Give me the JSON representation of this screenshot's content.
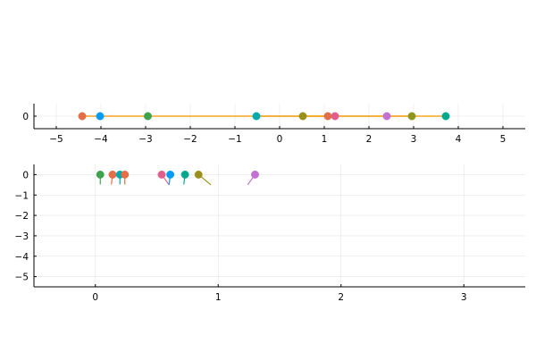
{
  "chart_data": [
    {
      "type": "scatter",
      "panel": "top",
      "title": "",
      "xlabel": "",
      "ylabel": "",
      "xlim": [
        -5.5,
        5.5
      ],
      "ylim": [
        -0.5,
        0.5
      ],
      "xticks": [
        -5,
        -4,
        -3,
        -2,
        -1,
        0,
        1,
        2,
        3,
        4,
        5
      ],
      "xtick_labels": [
        "−5",
        "−4",
        "−3",
        "−2",
        "−1",
        "0",
        "1",
        "2",
        "3",
        "4",
        "5"
      ],
      "yticks": [
        0
      ],
      "ytick_labels": [
        "0"
      ],
      "grid": true,
      "legend": "none",
      "line_color": "#f5a623",
      "lines": [
        {
          "x": [
            -4.4,
            -4.0
          ],
          "y": [
            0,
            0
          ]
        },
        {
          "x": [
            -4.0,
            3.7
          ],
          "y": [
            0,
            0
          ]
        },
        {
          "x": [
            -0.5,
            1.25
          ],
          "y": [
            0,
            0
          ]
        },
        {
          "x": [
            0.5,
            2.95
          ],
          "y": [
            0,
            0
          ]
        }
      ],
      "points": [
        {
          "x": -4.42,
          "y": 0,
          "color": "#e26f46"
        },
        {
          "x": -4.02,
          "y": 0,
          "color": "#009af9"
        },
        {
          "x": -2.95,
          "y": 0,
          "color": "#3da44d"
        },
        {
          "x": -0.52,
          "y": 0,
          "color": "#00a9ad"
        },
        {
          "x": 0.52,
          "y": 0,
          "color": "#9b8f1c"
        },
        {
          "x": 1.08,
          "y": 0,
          "color": "#e16f4a"
        },
        {
          "x": 1.24,
          "y": 0,
          "color": "#e05f8c"
        },
        {
          "x": 2.4,
          "y": 0,
          "color": "#c271d2"
        },
        {
          "x": 2.96,
          "y": 0,
          "color": "#8e971d"
        },
        {
          "x": 3.72,
          "y": 0,
          "color": "#00a98d"
        }
      ]
    },
    {
      "type": "scatter",
      "panel": "bottom",
      "title": "",
      "xlabel": "",
      "ylabel": "",
      "xlim": [
        -0.5,
        3.5
      ],
      "ylim": [
        -5.5,
        0.5
      ],
      "xticks": [
        0,
        1,
        2,
        3
      ],
      "xtick_labels": [
        "0",
        "1",
        "2",
        "3"
      ],
      "yticks": [
        0,
        -1,
        -2,
        -3,
        -4,
        -5
      ],
      "ytick_labels": [
        "0",
        "−1",
        "−2",
        "−3",
        "−4",
        "−5"
      ],
      "grid": true,
      "legend": "none",
      "points": [
        {
          "x": 0.04,
          "y": 0,
          "color": "#3da44d",
          "stem_to": [
            0.04,
            -0.48
          ],
          "stem_color": "#3da44d"
        },
        {
          "x": 0.14,
          "y": 0,
          "color": "#e26f46",
          "stem_to": [
            0.13,
            -0.48
          ],
          "stem_color": "#e26f46"
        },
        {
          "x": 0.2,
          "y": 0,
          "color": "#00a9ad",
          "stem_to": [
            0.2,
            -0.48
          ],
          "stem_color": "#00a9ad"
        },
        {
          "x": 0.24,
          "y": 0,
          "color": "#e26f46",
          "stem_to": [
            0.24,
            -0.48
          ],
          "stem_color": "#e26f46"
        },
        {
          "x": 0.54,
          "y": 0,
          "color": "#e05f8c",
          "stem_to": [
            0.6,
            -0.5
          ],
          "stem_color": "#e05f8c"
        },
        {
          "x": 0.61,
          "y": 0,
          "color": "#009af9",
          "stem_to": [
            0.6,
            -0.5
          ],
          "stem_color": "#009af9"
        },
        {
          "x": 0.73,
          "y": 0,
          "color": "#00a98d",
          "stem_to": [
            0.72,
            -0.48
          ],
          "stem_color": "#00a98d"
        },
        {
          "x": 0.84,
          "y": 0,
          "color": "#9b8f1c",
          "stem_to": [
            0.94,
            -0.5
          ],
          "stem_color": "#9b8f1c"
        },
        {
          "x": 1.3,
          "y": 0,
          "color": "#c271d2",
          "stem_to": [
            1.24,
            -0.5
          ],
          "stem_color": "#c271d2"
        }
      ]
    }
  ]
}
